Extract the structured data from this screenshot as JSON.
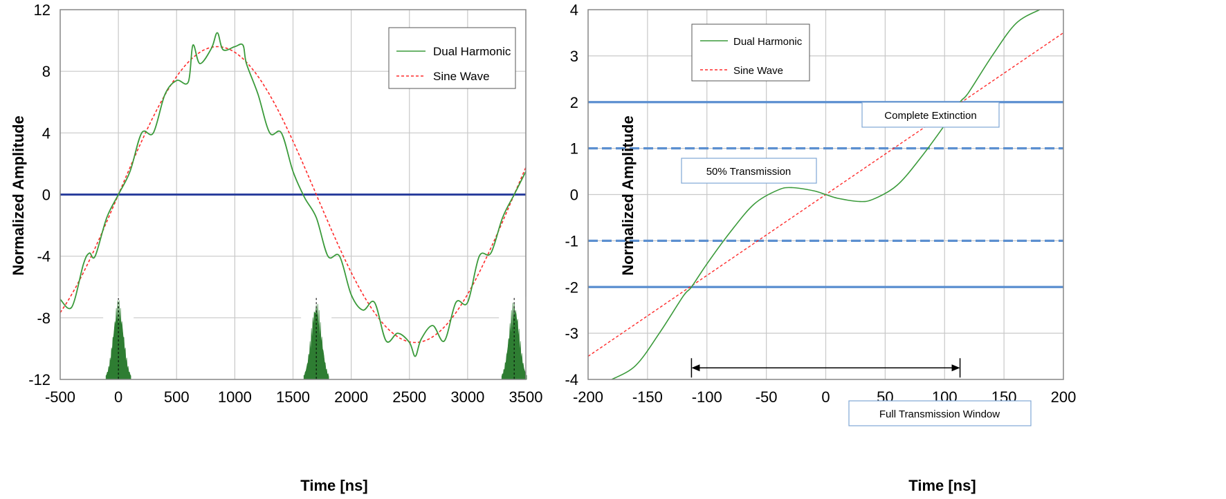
{
  "chart_data": [
    {
      "type": "line",
      "xlabel": "Time [ns]",
      "ylabel": "Normalized Amplitude",
      "xlim": [
        -500,
        3500
      ],
      "ylim": [
        -12,
        12
      ],
      "xticks": [
        "-500",
        "0",
        "500",
        "1000",
        "1500",
        "2000",
        "2500",
        "3000",
        "3500"
      ],
      "yticks": [
        "-12",
        "-8",
        "-4",
        "0",
        "4",
        "8",
        "12"
      ],
      "grid": true,
      "legend_position": "top-right",
      "series": [
        {
          "name": "Dual Harmonic",
          "style": "solid",
          "color": "#3a9a3a",
          "x": [
            -500,
            -400,
            -300,
            -250,
            -200,
            -100,
            0,
            100,
            200,
            300,
            400,
            500,
            600,
            640,
            700,
            800,
            850,
            900,
            1000,
            1070,
            1100,
            1200,
            1300,
            1400,
            1500,
            1600,
            1700,
            1800,
            1900,
            2000,
            2100,
            2200,
            2300,
            2400,
            2500,
            2550,
            2600,
            2700,
            2800,
            2900,
            3000,
            3100,
            3200,
            3300,
            3400,
            3500
          ],
          "y": [
            -6.8,
            -7.3,
            -4.5,
            -3.8,
            -4.0,
            -1.5,
            0.0,
            1.5,
            4.0,
            4.0,
            6.5,
            7.4,
            7.3,
            9.7,
            8.5,
            9.5,
            10.5,
            9.4,
            9.6,
            9.7,
            8.5,
            6.5,
            4.0,
            4.0,
            1.5,
            -0.2,
            -1.5,
            -4.0,
            -4.0,
            -6.5,
            -7.5,
            -7.0,
            -9.5,
            -9.0,
            -9.6,
            -10.5,
            -9.4,
            -8.5,
            -9.5,
            -7.0,
            -7.0,
            -4.0,
            -3.8,
            -1.5,
            0.0,
            1.5
          ]
        },
        {
          "name": "Sine Wave",
          "style": "dashed",
          "color": "#ff2a2a",
          "amplitude": 9.6,
          "period_ns": 3400,
          "zero_crossing_ns": 0
        }
      ],
      "reference_line": {
        "y": 0,
        "color": "#2b3f9e"
      },
      "pulses": {
        "x": [
          0,
          1700,
          3400
        ],
        "peak_y": -6.8,
        "color": "#2e7d32"
      }
    },
    {
      "type": "line",
      "xlabel": "Time [ns]",
      "ylabel": "Normalized Amplitude",
      "xlim": [
        -200,
        200
      ],
      "ylim": [
        -4,
        4
      ],
      "xticks": [
        "-200",
        "-150",
        "-100",
        "-50",
        "0",
        "50",
        "100",
        "150",
        "200"
      ],
      "yticks": [
        "-4",
        "-3",
        "-2",
        "-1",
        "0",
        "1",
        "2",
        "3",
        "4"
      ],
      "grid": true,
      "legend_position": "top-left",
      "series": [
        {
          "name": "Dual Harmonic",
          "style": "solid",
          "color": "#3a9a3a",
          "x": [
            -180,
            -160,
            -140,
            -120,
            -113,
            -100,
            -80,
            -60,
            -40,
            -28,
            -10,
            0,
            10,
            28,
            40,
            60,
            80,
            100,
            113,
            120,
            140,
            160,
            180
          ],
          "y": [
            -4.0,
            -3.7,
            -3.0,
            -2.2,
            -2.0,
            -1.5,
            -0.8,
            -0.2,
            0.1,
            0.15,
            0.08,
            0.0,
            -0.08,
            -0.15,
            -0.1,
            0.2,
            0.8,
            1.5,
            2.0,
            2.2,
            3.0,
            3.7,
            4.0
          ]
        },
        {
          "name": "Sine Wave",
          "style": "dashed",
          "color": "#ff2a2a",
          "x": [
            -200,
            200
          ],
          "y": [
            -3.5,
            3.5
          ]
        }
      ],
      "thresholds": [
        {
          "y": 2,
          "style": "solid",
          "label": "Complete Extinction"
        },
        {
          "y": 1,
          "style": "dashed",
          "label": "50% Transmission"
        },
        {
          "y": -1,
          "style": "dashed",
          "label": ""
        },
        {
          "y": -2,
          "style": "solid",
          "label": ""
        }
      ],
      "window": {
        "x_start": -113,
        "x_end": 113,
        "y": -3.75,
        "label": "Full Transmission Window"
      }
    }
  ]
}
